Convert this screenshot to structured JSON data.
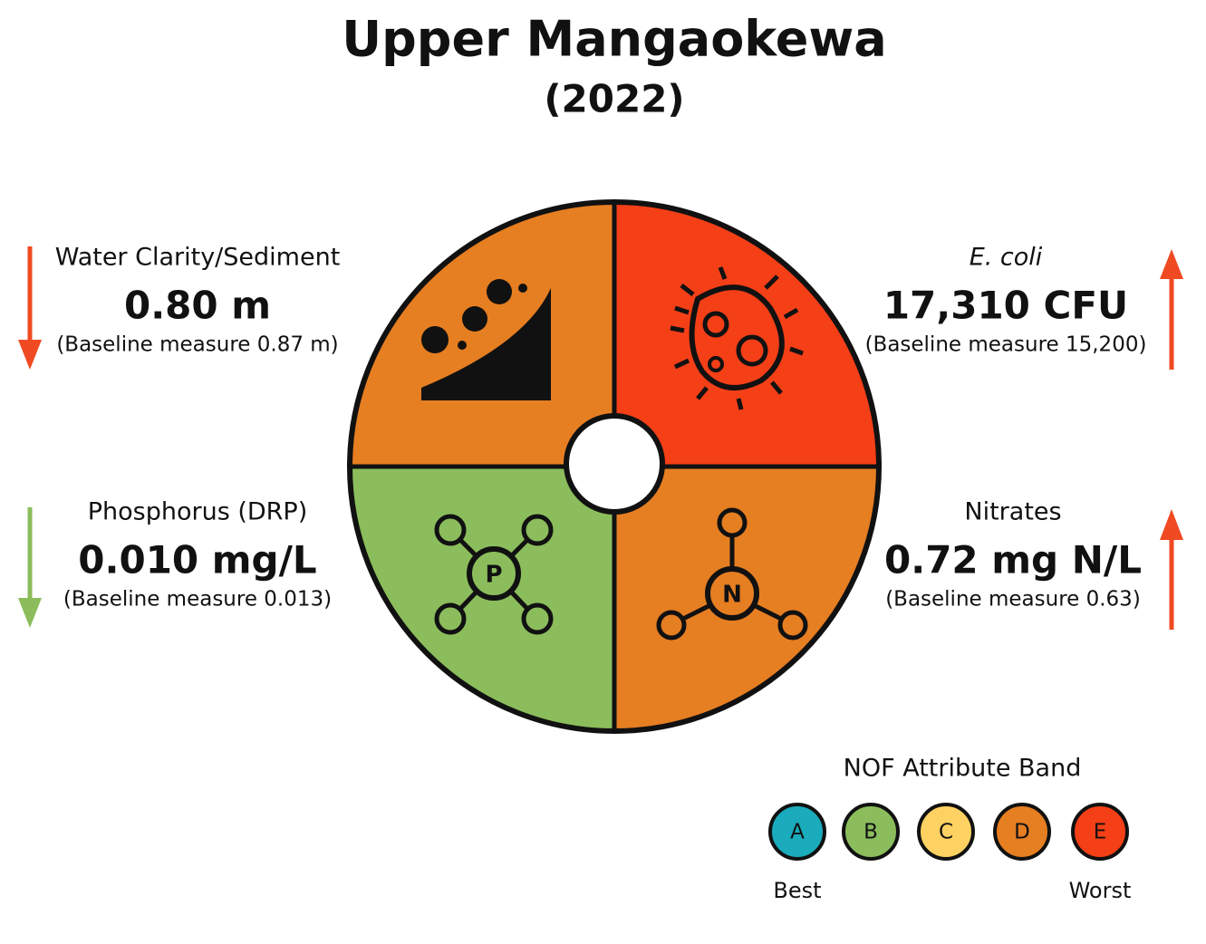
{
  "header": {
    "title": "Upper Mangaokewa",
    "subtitle": "(2022)"
  },
  "indicators": [
    {
      "label": "Water Clarity/Sediment",
      "value": "0.80 m",
      "baseline": "(Baseline measure 0.87 m)",
      "color": "#e67e22"
    },
    {
      "label": "E. coli",
      "value": "17,310 CFU",
      "baseline": "(Baseline measure 15,200)",
      "color": "#f43f17"
    },
    {
      "label": "Phosphorus (DRP)",
      "value": "0.010 mg/L",
      "baseline": "(Baseline measure 0.013)",
      "color": "#8bbd5c",
      "icon_label": "P"
    },
    {
      "label": "Nitrates",
      "value": "0.72 mg N/L",
      "baseline": "(Baseline measure 0.63)",
      "color": "#e67e22",
      "icon_label": "N"
    }
  ],
  "legend": {
    "title": "NOF Attribute Band",
    "bands": [
      {
        "label": "A",
        "color": "#1aabbd"
      },
      {
        "label": "B",
        "color": "#8bbd5c"
      },
      {
        "label": "C",
        "color": "#fdd262"
      },
      {
        "label": "D",
        "color": "#e67e22"
      },
      {
        "label": "E",
        "color": "#f43f17"
      }
    ],
    "best": "Best",
    "worst": "Worst"
  }
}
